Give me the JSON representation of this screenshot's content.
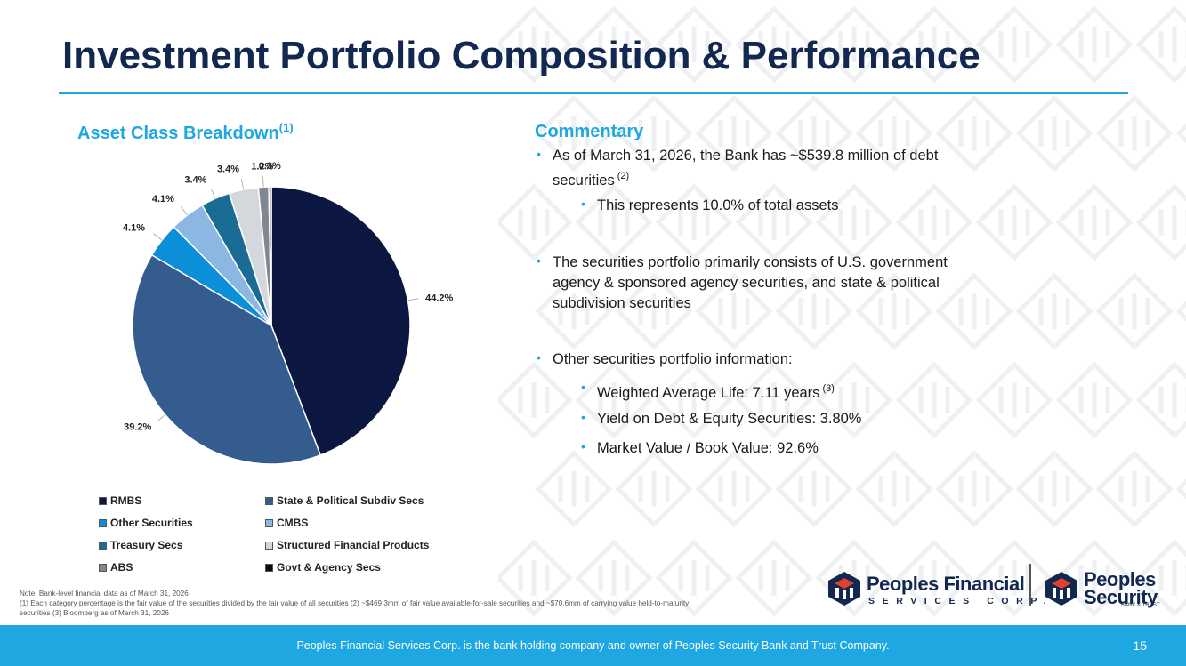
{
  "title": "Investment Portfolio Composition & Performance",
  "chart_section": {
    "title": "Asset Class Breakdown",
    "sup": "(1)"
  },
  "commentary": {
    "title": "Commentary",
    "bullets": [
      {
        "level": 1,
        "text": "As of March 31, 2026, the Bank has ~$539.8 million of debt",
        "sup": ""
      },
      {
        "level": 1,
        "text": "securities",
        "sup": "(2)",
        "continuation": true
      },
      {
        "level": 2,
        "text": "This represents 10.0% of total assets",
        "sup": ""
      },
      {
        "level": 1,
        "text": "The securities portfolio primarily consists of U.S. government",
        "sup": ""
      },
      {
        "level": 1,
        "text": "agency & sponsored agency securities, and state & political",
        "sup": "",
        "continuation": true
      },
      {
        "level": 1,
        "text": "subdivision securities",
        "sup": "",
        "continuation": true
      },
      {
        "level": 1,
        "text": "Other securities portfolio information:",
        "sup": ""
      },
      {
        "level": 2,
        "text": "Weighted Average Life: 7.11 years",
        "sup": "(3)"
      },
      {
        "level": 2,
        "text": "Yield on Debt & Equity Securities: 3.80%",
        "sup": ""
      },
      {
        "level": 2,
        "text": "Market Value / Book Value: 92.6%",
        "sup": ""
      }
    ]
  },
  "chart_data": {
    "type": "pie",
    "categories": [
      "RMBS",
      "State & Political Subdiv Secs",
      "Other Securities",
      "CMBS",
      "Treasury Secs",
      "Structured Financial Products",
      "ABS",
      "Govt & Agency Secs"
    ],
    "values": [
      44.2,
      39.2,
      4.1,
      4.1,
      3.4,
      3.4,
      1.2,
      0.3
    ],
    "labels": [
      "44.2%",
      "39.2%",
      "4.1%",
      "4.1%",
      "3.4%",
      "3.4%",
      "1.2%",
      "0.3%"
    ],
    "colors": [
      "#0b1740",
      "#345c8e",
      "#0b8fd6",
      "#8db7e3",
      "#1a6c94",
      "#d4d8dc",
      "#7f8791",
      "#0b0b0b"
    ],
    "legend_position": "bottom",
    "start_angle": "12 o'clock",
    "direction": "clockwise"
  },
  "note": {
    "line1": "Note: Bank-level financial data as of March 31, 2026",
    "line2": "(1) Each category percentage is the fair value of the securities divided by the fair value of all securities (2) ~$469.3mm of fair value available-for-sale securities and ~$70.6mm of carrying value held-to-maturity",
    "line3": "securities (3) Bloomberg as of March 31, 2026"
  },
  "logos": {
    "pfsc_name": "Peoples Financial",
    "pfsc_sub": "SERVICES CORP.",
    "psb_line1": "Peoples",
    "psb_line2": "Security",
    "psb_sub": "BANK & TRUST"
  },
  "footer": {
    "text": "Peoples Financial Services Corp. is the bank holding company and owner of Peoples Security Bank and Trust Company.",
    "page_number": "15"
  }
}
